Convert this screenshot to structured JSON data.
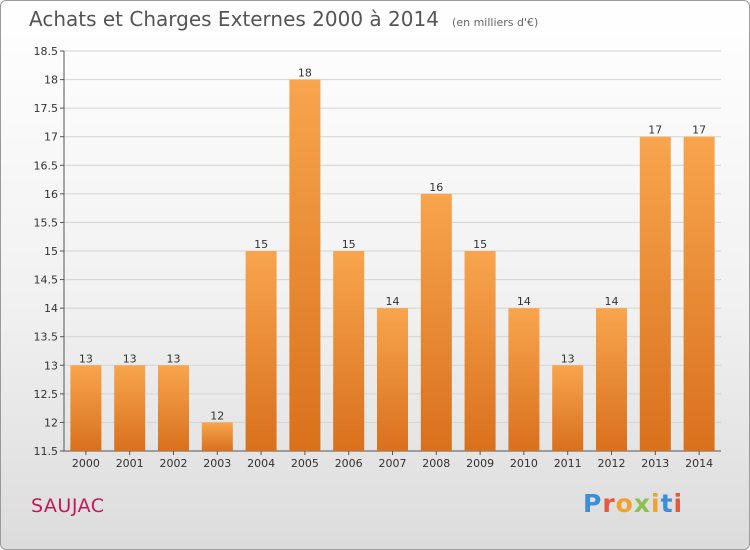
{
  "header": {
    "title": "Achats et Charges Externes 2000 à 2014",
    "subtitle": "(en milliers d'€)"
  },
  "footer": {
    "place": "SAUJAC",
    "logo_letters": [
      "P",
      "r",
      "o",
      "x",
      "i",
      "t",
      "i"
    ],
    "logo_colors": [
      "#3b8fd9",
      "#e9573f",
      "#f0a22e",
      "#8cc152",
      "#f0a22e",
      "#3b8fd9",
      "#e9573f"
    ]
  },
  "colors": {
    "bar_light": "#f8a54e",
    "bar_dark": "#d9701c",
    "grid": "#d4d4d4",
    "axis": "#555555"
  },
  "chart_data": {
    "type": "bar",
    "categories": [
      "2000",
      "2001",
      "2002",
      "2003",
      "2004",
      "2005",
      "2006",
      "2007",
      "2008",
      "2009",
      "2010",
      "2011",
      "2012",
      "2013",
      "2014"
    ],
    "values": [
      13,
      13,
      13,
      12,
      15,
      18,
      15,
      14,
      16,
      15,
      14,
      13,
      14,
      17,
      17
    ],
    "data_labels": [
      "13",
      "13",
      "13",
      "12",
      "15",
      "18",
      "15",
      "14",
      "16",
      "15",
      "14",
      "13",
      "14",
      "17",
      "17"
    ],
    "title": "Achats et Charges Externes 2000 à 2014",
    "ylim": [
      11.5,
      18.5
    ],
    "yticks": [
      "11.5",
      "12",
      "12.5",
      "13",
      "13.5",
      "14",
      "14.5",
      "15",
      "15.5",
      "16",
      "16.5",
      "17",
      "17.5",
      "18",
      "18.5"
    ],
    "grid": true,
    "legend": "none"
  }
}
